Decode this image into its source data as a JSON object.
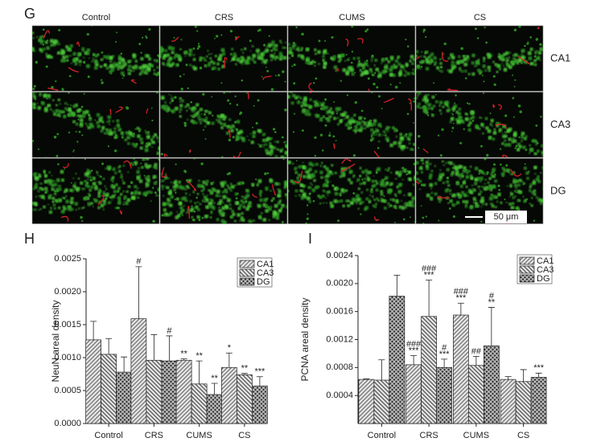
{
  "image_panel": {
    "label": "G",
    "columns": [
      "Control",
      "CRS",
      "CUMS",
      "CS"
    ],
    "rows": [
      "CA1",
      "CA3",
      "DG"
    ],
    "scale_bar": "50 μm"
  },
  "chart_data": [
    {
      "type": "bar",
      "panel_label": "H",
      "y_label": "NeuN areal density",
      "categories": [
        "Control",
        "CRS",
        "CUMS",
        "CS"
      ],
      "ylim": [
        0,
        0.0025
      ],
      "yticks": [
        {
          "value": 0,
          "label": "0.0000"
        },
        0.0005,
        {
          "value": 0.001,
          "label": "0.0010"
        },
        0.0015,
        {
          "value": 0.002,
          "label": "0.0020"
        },
        0.0025
      ],
      "series": [
        {
          "name": "CA1",
          "color": "#7a7a7a",
          "hatch": "right",
          "values": [
            0.00127,
            0.00159,
            0.00096,
            0.00085
          ],
          "errors": [
            0.00028,
            0.00079,
            2e-05,
            0.00022
          ],
          "markers": [
            null,
            [
              "#"
            ],
            [
              "**"
            ],
            [
              "*"
            ]
          ]
        },
        {
          "name": "CA3",
          "color": "#5c5c5c",
          "hatch": "left",
          "values": [
            0.00105,
            0.00096,
            0.0006,
            0.00074
          ],
          "errors": [
            0.00024,
            0.00039,
            0.00035,
            2e-05
          ],
          "markers": [
            null,
            null,
            [
              "**"
            ],
            [
              "**"
            ]
          ]
        },
        {
          "name": "DG",
          "color": "#2e2e2e",
          "hatch": "cross",
          "values": [
            0.00078,
            0.00095,
            0.00044,
            0.00057
          ],
          "errors": [
            0.00023,
            0.00038,
            0.00017,
            0.00014
          ],
          "markers": [
            null,
            [
              "#"
            ],
            [
              "**"
            ],
            [
              "***"
            ]
          ]
        }
      ]
    },
    {
      "type": "bar",
      "panel_label": "I",
      "y_label": "PCNA areal density",
      "categories": [
        "Control",
        "CRS",
        "CUMS",
        "CS"
      ],
      "ylim": [
        0,
        0.0024
      ],
      "yticks": [
        0.0004,
        0.0008,
        0.0012,
        0.0016,
        {
          "value": 0.002,
          "label": "0.0020"
        },
        0.0024
      ],
      "series": [
        {
          "name": "CA1",
          "color": "#7a7a7a",
          "hatch": "right",
          "values": [
            0.00063,
            0.00084,
            0.00155,
            0.00063
          ],
          "errors": [
            1e-05,
            0.00013,
            0.00017,
            4e-05
          ],
          "markers": [
            null,
            [
              "###",
              "***"
            ],
            [
              "###",
              "***"
            ],
            null
          ]
        },
        {
          "name": "CA3",
          "color": "#5c5c5c",
          "hatch": "left",
          "values": [
            0.00062,
            0.00153,
            0.00083,
            0.0006
          ],
          "errors": [
            0.00029,
            0.00052,
            0.00013,
            0.00017
          ],
          "markers": [
            null,
            [
              "###",
              "***"
            ],
            [
              "##"
            ],
            null
          ]
        },
        {
          "name": "DG",
          "color": "#2e2e2e",
          "hatch": "cross",
          "values": [
            0.00182,
            0.0008,
            0.00111,
            0.00066
          ],
          "errors": [
            0.0003,
            0.00012,
            0.00055,
            6e-05
          ],
          "markers": [
            null,
            [
              "#",
              "***"
            ],
            [
              "#",
              "**"
            ],
            [
              "***"
            ]
          ]
        }
      ]
    }
  ]
}
